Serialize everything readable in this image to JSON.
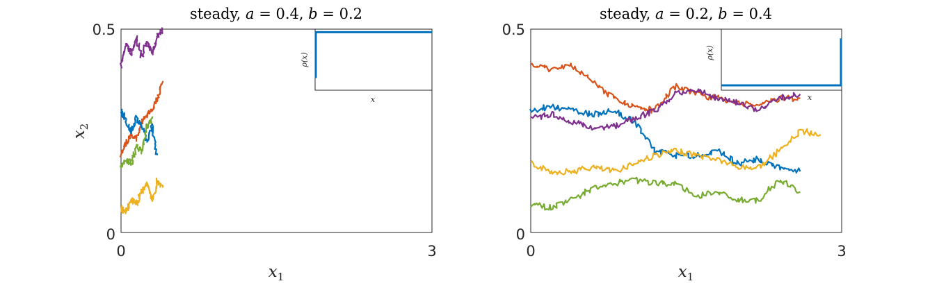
{
  "chart_data": [
    {
      "type": "line",
      "title": "steady, a = 0.4, b = 0.2",
      "title_parts": {
        "prefix": "steady, ",
        "a_label": "a",
        "a_eq": " = 0.4, ",
        "b_label": "b",
        "b_eq": " = 0.2"
      },
      "xlabel": "x1",
      "ylabel": "x2",
      "xlim": [
        0,
        3
      ],
      "ylim": [
        0,
        0.5
      ],
      "xticks": [
        "0",
        "3"
      ],
      "yticks": [
        "0",
        "0.5"
      ],
      "series": [
        {
          "color": "#7E2F8E",
          "x": [
            0.0,
            0.05,
            0.1,
            0.15,
            0.2,
            0.25,
            0.3,
            0.35,
            0.4
          ],
          "y": [
            0.41,
            0.46,
            0.44,
            0.48,
            0.43,
            0.47,
            0.44,
            0.48,
            0.5
          ]
        },
        {
          "color": "#D95319",
          "x": [
            0.0,
            0.05,
            0.1,
            0.15,
            0.2,
            0.25,
            0.3,
            0.35,
            0.4
          ],
          "y": [
            0.19,
            0.22,
            0.24,
            0.23,
            0.27,
            0.29,
            0.3,
            0.33,
            0.37
          ]
        },
        {
          "color": "#0072BD",
          "x": [
            0.0,
            0.05,
            0.1,
            0.15,
            0.2,
            0.25,
            0.3,
            0.35
          ],
          "y": [
            0.3,
            0.27,
            0.25,
            0.28,
            0.26,
            0.22,
            0.26,
            0.19
          ]
        },
        {
          "color": "#77AC30",
          "x": [
            0.0,
            0.05,
            0.1,
            0.15,
            0.2,
            0.25,
            0.3
          ],
          "y": [
            0.16,
            0.18,
            0.17,
            0.21,
            0.2,
            0.26,
            0.28
          ]
        },
        {
          "color": "#EDB120",
          "x": [
            0.0,
            0.05,
            0.1,
            0.15,
            0.2,
            0.25,
            0.3,
            0.35,
            0.4
          ],
          "y": [
            0.06,
            0.05,
            0.08,
            0.07,
            0.1,
            0.12,
            0.08,
            0.13,
            0.11
          ]
        }
      ],
      "inset": {
        "xlabel": "x",
        "ylabel": "ρ(x)",
        "profile": {
          "color": "#0072BD",
          "jump_from": 0.2,
          "level": 0.95
        }
      }
    },
    {
      "type": "line",
      "title": "steady, a = 0.2, b = 0.4",
      "title_parts": {
        "prefix": "steady, ",
        "a_label": "a",
        "a_eq": " = 0.2, ",
        "b_label": "b",
        "b_eq": " = 0.4"
      },
      "xlabel": "x1",
      "ylabel": "",
      "xlim": [
        0,
        3
      ],
      "ylim": [
        0,
        0.5
      ],
      "xticks": [
        "0",
        "3"
      ],
      "yticks": [
        "0",
        "0.5"
      ],
      "series": [
        {
          "color": "#D95319",
          "x": [
            0.0,
            0.2,
            0.4,
            0.6,
            0.8,
            1.0,
            1.2,
            1.4,
            1.6,
            1.8,
            2.0,
            2.2,
            2.4,
            2.6
          ],
          "y": [
            0.41,
            0.4,
            0.41,
            0.37,
            0.33,
            0.31,
            0.3,
            0.36,
            0.34,
            0.33,
            0.32,
            0.31,
            0.33,
            0.33
          ]
        },
        {
          "color": "#0072BD",
          "x": [
            0.0,
            0.2,
            0.4,
            0.6,
            0.8,
            1.0,
            1.2,
            1.4,
            1.6,
            1.8,
            2.0,
            2.2,
            2.4,
            2.6
          ],
          "y": [
            0.3,
            0.31,
            0.3,
            0.29,
            0.3,
            0.27,
            0.2,
            0.19,
            0.19,
            0.2,
            0.17,
            0.18,
            0.16,
            0.15
          ]
        },
        {
          "color": "#7E2F8E",
          "x": [
            0.0,
            0.2,
            0.4,
            0.6,
            0.8,
            1.0,
            1.2,
            1.4,
            1.6,
            1.8,
            2.0,
            2.2,
            2.4,
            2.6
          ],
          "y": [
            0.28,
            0.29,
            0.27,
            0.26,
            0.26,
            0.28,
            0.3,
            0.34,
            0.35,
            0.33,
            0.32,
            0.3,
            0.33,
            0.34
          ]
        },
        {
          "color": "#EDB120",
          "x": [
            0.0,
            0.2,
            0.4,
            0.6,
            0.8,
            1.0,
            1.2,
            1.4,
            1.6,
            1.8,
            2.0,
            2.2,
            2.4,
            2.6,
            2.8
          ],
          "y": [
            0.17,
            0.15,
            0.15,
            0.16,
            0.15,
            0.17,
            0.19,
            0.2,
            0.19,
            0.18,
            0.16,
            0.16,
            0.2,
            0.25,
            0.24
          ]
        },
        {
          "color": "#77AC30",
          "x": [
            0.0,
            0.2,
            0.4,
            0.6,
            0.8,
            1.0,
            1.2,
            1.4,
            1.6,
            1.8,
            2.0,
            2.2,
            2.4,
            2.6
          ],
          "y": [
            0.07,
            0.06,
            0.08,
            0.11,
            0.12,
            0.13,
            0.12,
            0.12,
            0.09,
            0.1,
            0.08,
            0.08,
            0.13,
            0.1
          ]
        }
      ],
      "inset": {
        "xlabel": "x",
        "ylabel": "ρ(x)",
        "profile": {
          "color": "#0072BD",
          "jump_from": 0.0,
          "level": 0.08,
          "rise_at_end": 0.85
        }
      }
    }
  ]
}
